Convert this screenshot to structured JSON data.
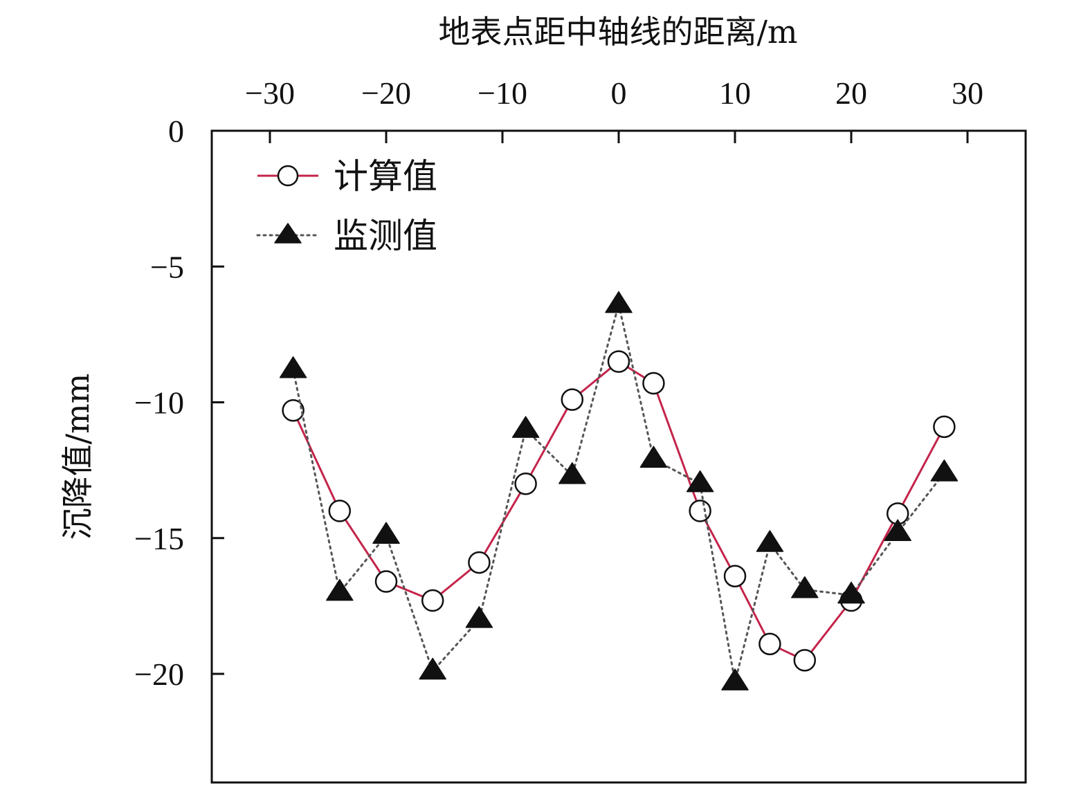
{
  "chart_data": {
    "type": "line",
    "xlabel": "地表点距中轴线的距离/m",
    "ylabel": "沉降值/mm",
    "xlim": [
      -35,
      35
    ],
    "ylim": [
      -24,
      0
    ],
    "x_ticks": [
      -30,
      -20,
      -10,
      0,
      10,
      20,
      30
    ],
    "x_tick_labels": [
      "−30",
      "−20",
      "−10",
      "0",
      "10",
      "20",
      "30"
    ],
    "y_ticks": [
      0,
      -5,
      -10,
      -15,
      -20
    ],
    "y_tick_labels": [
      "0",
      "−5",
      "−10",
      "−15",
      "−20"
    ],
    "x_axis_position": "top",
    "grid": false,
    "legend_position": "top-left",
    "series": [
      {
        "name": "计算值",
        "color": "#c4244a",
        "line_style": "solid",
        "marker": "open-circle",
        "points": [
          {
            "x": -28,
            "y": -10.3
          },
          {
            "x": -24,
            "y": -14.0
          },
          {
            "x": -20,
            "y": -16.6
          },
          {
            "x": -16,
            "y": -17.3
          },
          {
            "x": -12,
            "y": -15.9
          },
          {
            "x": -8,
            "y": -13.0
          },
          {
            "x": -4,
            "y": -9.9
          },
          {
            "x": 0,
            "y": -8.5
          },
          {
            "x": 3,
            "y": -9.3
          },
          {
            "x": 7,
            "y": -14.0
          },
          {
            "x": 10,
            "y": -16.4
          },
          {
            "x": 13,
            "y": -18.9
          },
          {
            "x": 16,
            "y": -19.5
          },
          {
            "x": 20,
            "y": -17.3
          },
          {
            "x": 24,
            "y": -14.1
          },
          {
            "x": 28,
            "y": -10.9
          }
        ]
      },
      {
        "name": "监测值",
        "color": "#555555",
        "line_style": "dotted",
        "marker": "filled-triangle",
        "points": [
          {
            "x": -28,
            "y": -8.8
          },
          {
            "x": -24,
            "y": -17.0
          },
          {
            "x": -20,
            "y": -14.9
          },
          {
            "x": -16,
            "y": -19.9
          },
          {
            "x": -12,
            "y": -18.0
          },
          {
            "x": -8,
            "y": -11.0
          },
          {
            "x": -4,
            "y": -12.7
          },
          {
            "x": 0,
            "y": -6.4
          },
          {
            "x": 3,
            "y": -12.1
          },
          {
            "x": 7,
            "y": -13.0
          },
          {
            "x": 10,
            "y": -20.3
          },
          {
            "x": 13,
            "y": -15.2
          },
          {
            "x": 16,
            "y": -16.9
          },
          {
            "x": 20,
            "y": -17.1
          },
          {
            "x": 24,
            "y": -14.8
          },
          {
            "x": 28,
            "y": -12.6
          }
        ]
      }
    ]
  }
}
